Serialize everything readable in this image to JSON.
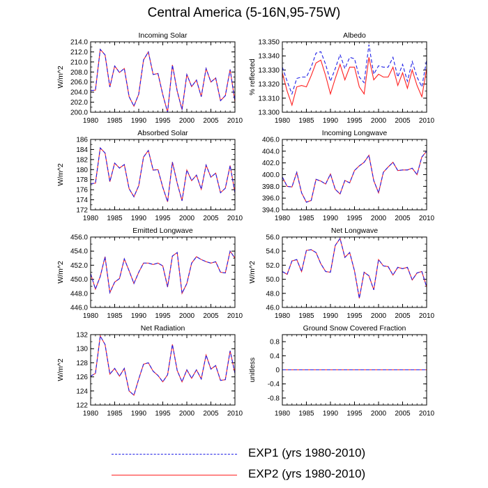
{
  "title": "Central America (5-16N,95-75W)",
  "colors": {
    "exp1": "#1f1fe6",
    "exp2": "#ff2020",
    "axis": "#000000"
  },
  "legend": [
    {
      "key": "exp1",
      "label": "EXP1 (yrs 1980-2010)",
      "style": "dashed"
    },
    {
      "key": "exp2",
      "label": "EXP2 (yrs 1980-2010)",
      "style": "solid"
    }
  ],
  "chart_data": [
    {
      "type": "line",
      "title": "Incoming Solar",
      "ylabel": "W/m^2",
      "xlabel": "",
      "xlim": [
        1980,
        2010
      ],
      "xticks": [
        "1980",
        "1985",
        "1990",
        "1995",
        "2000",
        "2005",
        "2010"
      ],
      "ylim": [
        200,
        214
      ],
      "yticks": [
        "200.0",
        "202.0",
        "204.0",
        "206.0",
        "208.0",
        "210.0",
        "212.0",
        "214.0"
      ],
      "x": [
        1980,
        1981,
        1982,
        1983,
        1984,
        1985,
        1986,
        1987,
        1988,
        1989,
        1990,
        1991,
        1992,
        1993,
        1994,
        1995,
        1996,
        1997,
        1998,
        1999,
        2000,
        2001,
        2002,
        2003,
        2004,
        2005,
        2006,
        2007,
        2008,
        2009,
        2010
      ],
      "series": [
        {
          "name": "EXP1 (yrs 1980-2010)",
          "values": [
            204.3,
            204.4,
            212.5,
            211.4,
            205.0,
            209.2,
            207.9,
            208.7,
            203.1,
            201.2,
            203.6,
            210.4,
            212.0,
            207.5,
            207.7,
            203.5,
            200.0,
            209.4,
            204.2,
            200.5,
            207.5,
            205.1,
            206.4,
            203.1,
            208.7,
            206.0,
            206.8,
            202.3,
            203.3,
            208.5,
            202.1
          ]
        },
        {
          "name": "EXP2 (yrs 1980-2010)",
          "values": [
            204.3,
            204.4,
            212.5,
            211.4,
            205.0,
            209.2,
            207.9,
            208.7,
            203.1,
            201.2,
            203.6,
            210.4,
            212.0,
            207.5,
            207.7,
            203.5,
            200.0,
            209.4,
            204.2,
            200.5,
            207.5,
            205.1,
            206.4,
            203.1,
            208.7,
            206.0,
            206.8,
            202.3,
            203.3,
            208.5,
            202.1
          ]
        }
      ]
    },
    {
      "type": "line",
      "title": "Albedo",
      "ylabel": "% reflected",
      "xlabel": "",
      "xlim": [
        1980,
        2010
      ],
      "xticks": [
        "1980",
        "1985",
        "1990",
        "1995",
        "2000",
        "2005",
        "2010"
      ],
      "ylim": [
        13.3,
        13.35
      ],
      "yticks": [
        "13.300",
        "13.310",
        "13.320",
        "13.330",
        "13.340",
        "13.350"
      ],
      "x": [
        1980,
        1981,
        1982,
        1983,
        1984,
        1985,
        1986,
        1987,
        1988,
        1989,
        1990,
        1991,
        1992,
        1993,
        1994,
        1995,
        1996,
        1997,
        1998,
        1999,
        2000,
        2001,
        2002,
        2003,
        2004,
        2005,
        2006,
        2007,
        2008,
        2009,
        2010
      ],
      "series": [
        {
          "name": "EXP1 (yrs 1980-2010)",
          "values": [
            13.332,
            13.322,
            13.313,
            13.324,
            13.325,
            13.325,
            13.332,
            13.342,
            13.343,
            13.334,
            13.322,
            13.331,
            13.341,
            13.331,
            13.339,
            13.338,
            13.325,
            13.321,
            13.348,
            13.327,
            13.333,
            13.332,
            13.332,
            13.339,
            13.325,
            13.334,
            13.322,
            13.336,
            13.325,
            13.318,
            13.337
          ]
        },
        {
          "name": "EXP2 (yrs 1980-2010)",
          "values": [
            13.328,
            13.315,
            13.305,
            13.318,
            13.319,
            13.318,
            13.326,
            13.335,
            13.337,
            13.326,
            13.313,
            13.324,
            13.334,
            13.323,
            13.332,
            13.332,
            13.318,
            13.313,
            13.339,
            13.323,
            13.327,
            13.325,
            13.325,
            13.332,
            13.319,
            13.328,
            13.317,
            13.33,
            13.319,
            13.311,
            13.331
          ]
        }
      ]
    },
    {
      "type": "line",
      "title": "Absorbed Solar",
      "ylabel": "W/m^2",
      "xlabel": "",
      "xlim": [
        1980,
        2010
      ],
      "xticks": [
        "1980",
        "1985",
        "1990",
        "1995",
        "2000",
        "2005",
        "2010"
      ],
      "ylim": [
        172,
        186
      ],
      "yticks": [
        "172",
        "174",
        "176",
        "178",
        "180",
        "182",
        "184",
        "186"
      ],
      "x": [
        1980,
        1981,
        1982,
        1983,
        1984,
        1985,
        1986,
        1987,
        1988,
        1989,
        1990,
        1991,
        1992,
        1993,
        1994,
        1995,
        1996,
        1997,
        1998,
        1999,
        2000,
        2001,
        2002,
        2003,
        2004,
        2005,
        2006,
        2007,
        2008,
        2009,
        2010
      ],
      "series": [
        {
          "name": "EXP1 (yrs 1980-2010)",
          "values": [
            177.2,
            177.3,
            184.3,
            183.3,
            177.6,
            181.3,
            180.3,
            181.0,
            176.2,
            174.6,
            176.8,
            182.5,
            183.8,
            179.9,
            180.0,
            176.5,
            173.6,
            181.5,
            177.3,
            173.8,
            179.9,
            177.8,
            178.9,
            176.1,
            180.9,
            178.5,
            179.3,
            175.4,
            176.3,
            180.8,
            175.4
          ]
        },
        {
          "name": "EXP2 (yrs 1980-2010)",
          "values": [
            177.2,
            177.3,
            184.3,
            183.3,
            177.6,
            181.3,
            180.3,
            181.0,
            176.2,
            174.6,
            176.8,
            182.5,
            183.8,
            179.9,
            180.0,
            176.5,
            173.6,
            181.5,
            177.3,
            173.8,
            179.9,
            177.8,
            178.9,
            176.1,
            180.9,
            178.5,
            179.3,
            175.4,
            176.3,
            180.8,
            175.4
          ]
        }
      ]
    },
    {
      "type": "line",
      "title": "Incoming Longwave",
      "ylabel": "",
      "xlabel": "",
      "xlim": [
        1980,
        2010
      ],
      "xticks": [
        "1980",
        "1985",
        "1990",
        "1995",
        "2000",
        "2005",
        "2010"
      ],
      "ylim": [
        394,
        406
      ],
      "yticks": [
        "394.0",
        "396.0",
        "398.0",
        "400.0",
        "402.0",
        "404.0",
        "406.0"
      ],
      "x": [
        1980,
        1981,
        1982,
        1983,
        1984,
        1985,
        1986,
        1987,
        1988,
        1989,
        1990,
        1991,
        1992,
        1993,
        1994,
        1995,
        1996,
        1997,
        1998,
        1999,
        2000,
        2001,
        2002,
        2003,
        2004,
        2005,
        2006,
        2007,
        2008,
        2009,
        2010
      ],
      "series": [
        {
          "name": "EXP1 (yrs 1980-2010)",
          "values": [
            399.6,
            398.0,
            397.9,
            400.4,
            396.9,
            395.3,
            395.6,
            399.2,
            398.9,
            398.4,
            400.1,
            397.5,
            396.7,
            399.0,
            398.6,
            400.7,
            401.5,
            402.1,
            403.3,
            399.0,
            396.9,
            400.4,
            401.3,
            402.1,
            400.7,
            400.8,
            400.8,
            401.1,
            400.0,
            403.0,
            404.0
          ]
        },
        {
          "name": "EXP2 (yrs 1980-2010)",
          "values": [
            399.6,
            398.0,
            397.9,
            400.4,
            396.9,
            395.3,
            395.6,
            399.2,
            398.9,
            398.4,
            400.1,
            397.5,
            396.7,
            399.0,
            398.6,
            400.7,
            401.5,
            402.1,
            403.3,
            399.0,
            396.9,
            400.4,
            401.3,
            402.1,
            400.7,
            400.8,
            400.8,
            401.1,
            400.0,
            403.0,
            404.0
          ]
        }
      ]
    },
    {
      "type": "line",
      "title": "Emitted Longwave",
      "ylabel": "W/m^2",
      "xlabel": "",
      "xlim": [
        1980,
        2010
      ],
      "xticks": [
        "1980",
        "1985",
        "1990",
        "1995",
        "2000",
        "2005",
        "2010"
      ],
      "ylim": [
        446,
        456
      ],
      "yticks": [
        "446.0",
        "448.0",
        "450.0",
        "452.0",
        "454.0",
        "456.0"
      ],
      "x": [
        1980,
        1981,
        1982,
        1983,
        1984,
        1985,
        1986,
        1987,
        1988,
        1989,
        1990,
        1991,
        1992,
        1993,
        1994,
        1995,
        1996,
        1997,
        1998,
        1999,
        2000,
        2001,
        2002,
        2003,
        2004,
        2005,
        2006,
        2007,
        2008,
        2009,
        2010
      ],
      "series": [
        {
          "name": "EXP1 (yrs 1980-2010)",
          "values": [
            450.8,
            448.6,
            450.4,
            453.2,
            448.1,
            449.6,
            450.1,
            452.9,
            451.2,
            449.4,
            451.0,
            452.3,
            452.3,
            452.1,
            452.3,
            451.9,
            448.9,
            453.3,
            453.8,
            448.0,
            449.4,
            452.3,
            453.2,
            452.8,
            452.5,
            452.3,
            452.5,
            451.0,
            450.9,
            454.0,
            453.0
          ]
        },
        {
          "name": "EXP2 (yrs 1980-2010)",
          "values": [
            450.8,
            448.6,
            450.4,
            453.2,
            448.1,
            449.6,
            450.1,
            452.9,
            451.2,
            449.4,
            451.0,
            452.3,
            452.3,
            452.1,
            452.3,
            451.9,
            448.9,
            453.3,
            453.8,
            448.0,
            449.4,
            452.3,
            453.2,
            452.8,
            452.5,
            452.3,
            452.5,
            451.0,
            450.9,
            454.0,
            453.0
          ]
        }
      ]
    },
    {
      "type": "line",
      "title": "Net Longwave",
      "ylabel": "W/m^2",
      "xlabel": "",
      "xlim": [
        1980,
        2010
      ],
      "xticks": [
        "1980",
        "1985",
        "1990",
        "1995",
        "2000",
        "2005",
        "2010"
      ],
      "ylim": [
        46,
        56
      ],
      "yticks": [
        "46.0",
        "48.0",
        "50.0",
        "52.0",
        "54.0",
        "56.0"
      ],
      "x": [
        1980,
        1981,
        1982,
        1983,
        1984,
        1985,
        1986,
        1987,
        1988,
        1989,
        1990,
        1991,
        1992,
        1993,
        1994,
        1995,
        1996,
        1997,
        1998,
        1999,
        2000,
        2001,
        2002,
        2003,
        2004,
        2005,
        2006,
        2007,
        2008,
        2009,
        2010
      ],
      "series": [
        {
          "name": "EXP1 (yrs 1980-2010)",
          "values": [
            51.1,
            50.7,
            52.6,
            52.8,
            51.1,
            54.1,
            54.2,
            53.8,
            52.2,
            51.1,
            51.0,
            54.8,
            55.8,
            53.1,
            53.8,
            51.2,
            47.3,
            51.0,
            50.5,
            48.5,
            52.8,
            51.9,
            51.8,
            50.6,
            51.7,
            51.5,
            51.7,
            49.9,
            50.9,
            51.1,
            48.9
          ]
        },
        {
          "name": "EXP2 (yrs 1980-2010)",
          "values": [
            51.1,
            50.7,
            52.6,
            52.8,
            51.1,
            54.1,
            54.2,
            53.8,
            52.2,
            51.1,
            51.0,
            54.8,
            55.8,
            53.1,
            53.8,
            51.2,
            47.3,
            51.0,
            50.5,
            48.5,
            52.8,
            51.9,
            51.8,
            50.6,
            51.7,
            51.5,
            51.7,
            49.9,
            50.9,
            51.1,
            48.9
          ]
        }
      ]
    },
    {
      "type": "line",
      "title": "Net Radiation",
      "ylabel": "W/m^2",
      "xlabel": "",
      "xlim": [
        1980,
        2010
      ],
      "xticks": [
        "1980",
        "1985",
        "1990",
        "1995",
        "2000",
        "2005",
        "2010"
      ],
      "ylim": [
        122,
        132
      ],
      "yticks": [
        "122",
        "124",
        "126",
        "128",
        "130",
        "132"
      ],
      "x": [
        1980,
        1981,
        1982,
        1983,
        1984,
        1985,
        1986,
        1987,
        1988,
        1989,
        1990,
        1991,
        1992,
        1993,
        1994,
        1995,
        1996,
        1997,
        1998,
        1999,
        2000,
        2001,
        2002,
        2003,
        2004,
        2005,
        2006,
        2007,
        2008,
        2009,
        2010
      ],
      "series": [
        {
          "name": "EXP1 (yrs 1980-2010)",
          "values": [
            126.1,
            126.5,
            131.8,
            130.6,
            126.4,
            127.2,
            126.1,
            127.2,
            124.0,
            123.4,
            125.7,
            127.8,
            128.0,
            126.8,
            126.2,
            125.3,
            126.3,
            130.6,
            126.9,
            125.3,
            127.0,
            125.8,
            127.0,
            125.7,
            129.1,
            127.1,
            127.6,
            125.5,
            125.6,
            129.7,
            126.5
          ]
        },
        {
          "name": "EXP2 (yrs 1980-2010)",
          "values": [
            126.1,
            126.5,
            131.8,
            130.6,
            126.4,
            127.2,
            126.1,
            127.2,
            124.0,
            123.4,
            125.7,
            127.8,
            128.0,
            126.8,
            126.2,
            125.3,
            126.3,
            130.6,
            126.9,
            125.3,
            127.0,
            125.8,
            127.0,
            125.7,
            129.1,
            127.1,
            127.6,
            125.5,
            125.6,
            129.7,
            126.5
          ]
        }
      ]
    },
    {
      "type": "line",
      "title": "Ground Snow Covered Fraction",
      "ylabel": "unitless",
      "xlabel": "",
      "xlim": [
        1980,
        2010
      ],
      "xticks": [
        "1980",
        "1985",
        "1990",
        "1995",
        "2000",
        "2005",
        "2010"
      ],
      "ylim": [
        -1,
        1
      ],
      "yticks": [
        "-0.8",
        "-0.4",
        "0",
        "0.4",
        "0.8"
      ],
      "ytick_values": [
        -0.8,
        -0.4,
        0,
        0.4,
        0.8
      ],
      "x": [
        1980,
        1981,
        1982,
        1983,
        1984,
        1985,
        1986,
        1987,
        1988,
        1989,
        1990,
        1991,
        1992,
        1993,
        1994,
        1995,
        1996,
        1997,
        1998,
        1999,
        2000,
        2001,
        2002,
        2003,
        2004,
        2005,
        2006,
        2007,
        2008,
        2009,
        2010
      ],
      "series": [
        {
          "name": "EXP1 (yrs 1980-2010)",
          "values": [
            0,
            0,
            0,
            0,
            0,
            0,
            0,
            0,
            0,
            0,
            0,
            0,
            0,
            0,
            0,
            0,
            0,
            0,
            0,
            0,
            0,
            0,
            0,
            0,
            0,
            0,
            0,
            0,
            0,
            0,
            0
          ]
        },
        {
          "name": "EXP2 (yrs 1980-2010)",
          "values": [
            0,
            0,
            0,
            0,
            0,
            0,
            0,
            0,
            0,
            0,
            0,
            0,
            0,
            0,
            0,
            0,
            0,
            0,
            0,
            0,
            0,
            0,
            0,
            0,
            0,
            0,
            0,
            0,
            0,
            0,
            0
          ]
        }
      ]
    }
  ]
}
